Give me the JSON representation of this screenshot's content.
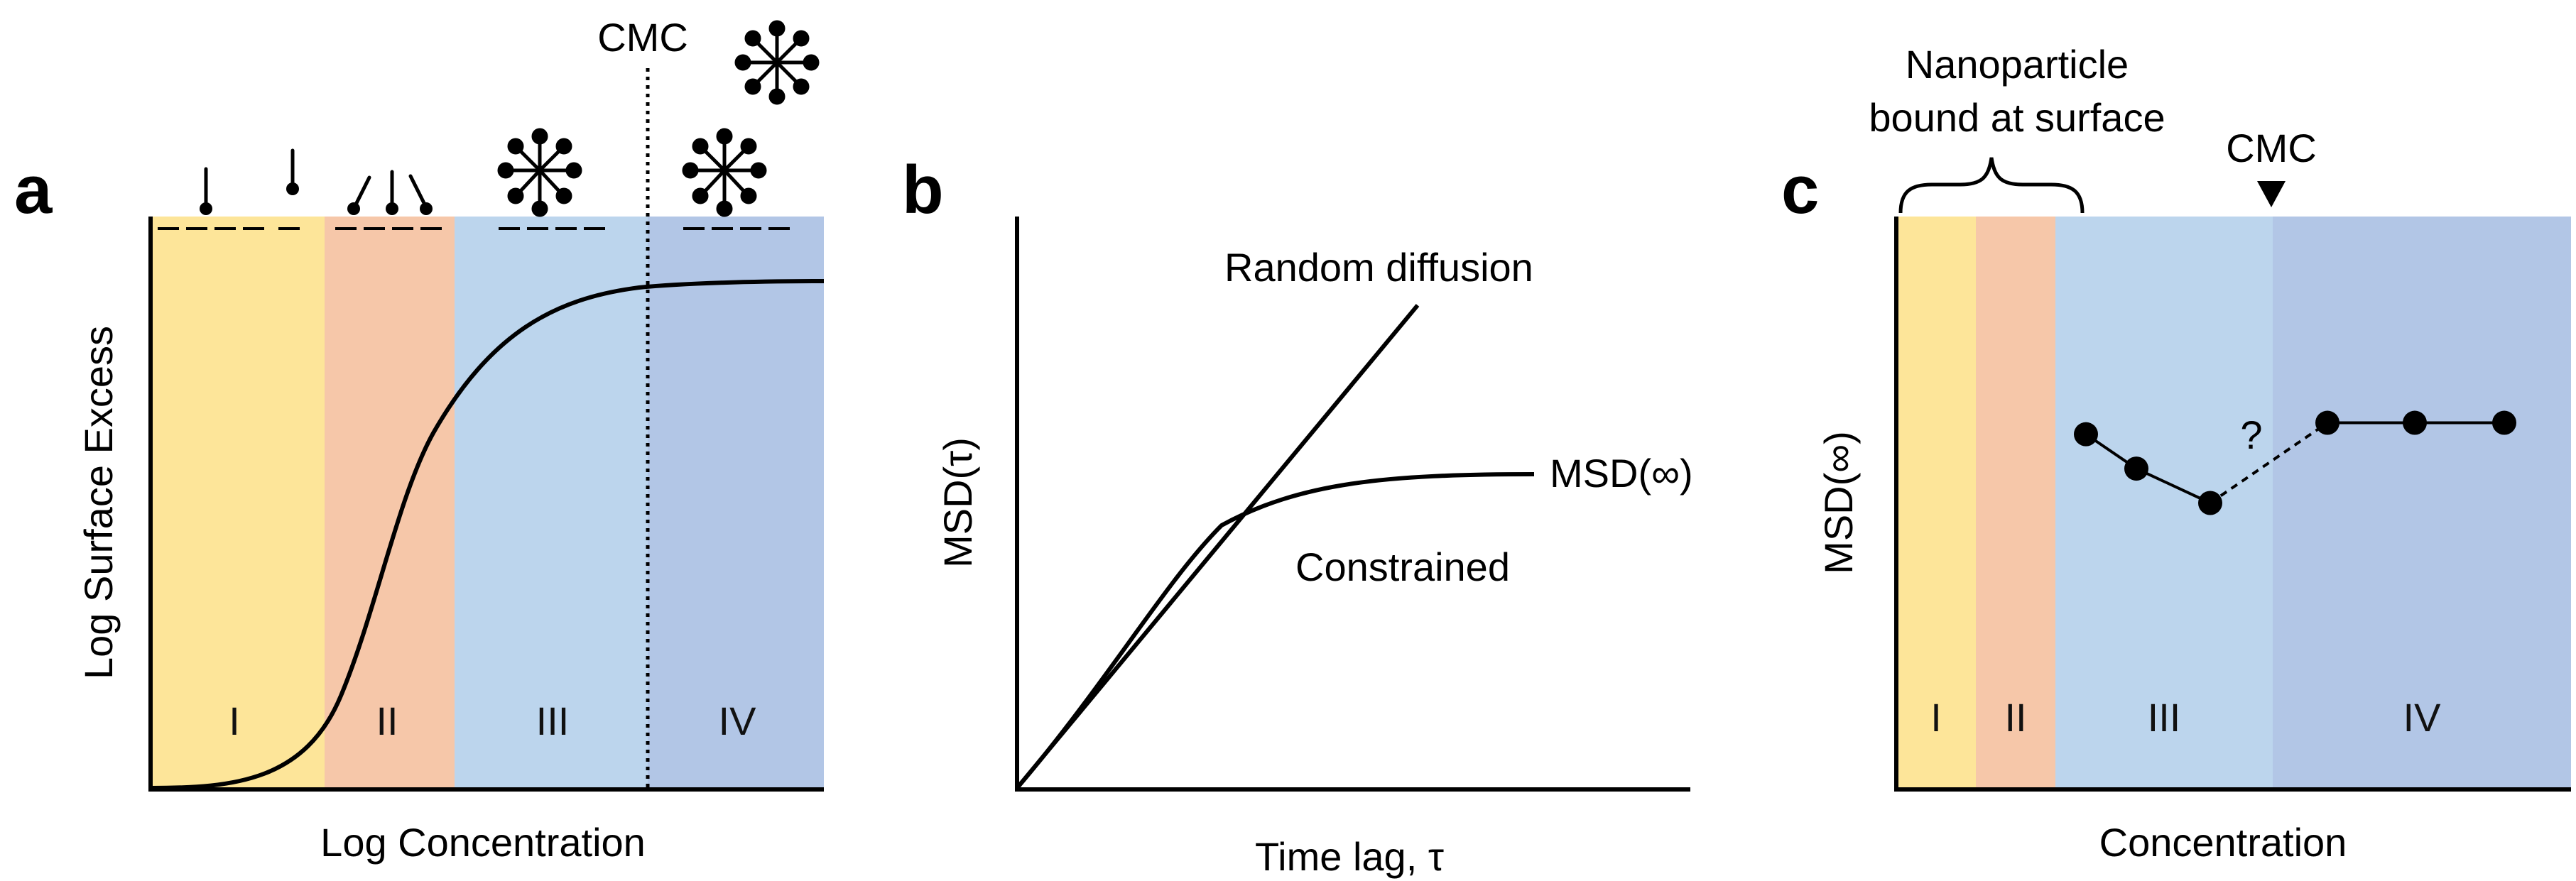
{
  "panels": {
    "a": {
      "letter": "a",
      "ylabel": "Log Surface Excess",
      "xlabel": "Log Concentration",
      "cmc_label": "CMC",
      "regions": [
        {
          "label": "I",
          "color": "#fde599"
        },
        {
          "label": "II",
          "color": "#f6c7a9"
        },
        {
          "label": "III",
          "color": "#bcd5ed"
        },
        {
          "label": "IV",
          "color": "#b2c6e6"
        }
      ]
    },
    "b": {
      "letter": "b",
      "ylabel": "MSD(τ)",
      "xlabel": "Time lag, τ",
      "line_label_random": "Random diffusion",
      "line_label_constrained": "Constrained",
      "plateau_label": "MSD(∞)"
    },
    "c": {
      "letter": "c",
      "ylabel": "MSD(∞)",
      "xlabel": "Concentration",
      "bracket_label_line1": "Nanoparticle",
      "bracket_label_line2": "bound at surface",
      "cmc_label": "CMC",
      "question_mark": "?",
      "regions": [
        {
          "label": "I",
          "color": "#fde599"
        },
        {
          "label": "II",
          "color": "#f6c7a9"
        },
        {
          "label": "III",
          "color": "#bcd5ed"
        },
        {
          "label": "IV",
          "color": "#b2c6e6"
        }
      ]
    }
  },
  "chart_data": {
    "type": "line",
    "series": [
      {
        "name": "",
        "values": [
          0.62,
          0.56,
          0.5
        ]
      },
      {
        "name": "",
        "values": [
          0.64,
          0.64,
          0.64
        ]
      }
    ]
  }
}
